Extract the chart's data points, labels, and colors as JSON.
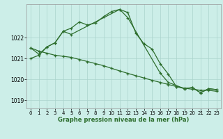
{
  "xlabel": "Graphe pression niveau de la mer (hPa)",
  "bg_color": "#cceee8",
  "grid_color": "#aad4cc",
  "line_color": "#2d6e2d",
  "ylim": [
    1018.6,
    1023.6
  ],
  "xlim": [
    -0.5,
    23.5
  ],
  "yticks": [
    1019,
    1020,
    1021,
    1022
  ],
  "xticks": [
    0,
    1,
    2,
    3,
    4,
    5,
    6,
    7,
    8,
    9,
    10,
    11,
    12,
    13,
    14,
    15,
    16,
    17,
    18,
    19,
    20,
    21,
    22,
    23
  ],
  "series1_x": [
    0,
    1,
    2,
    3,
    4,
    5,
    6,
    7,
    8,
    9,
    10,
    11,
    12,
    13,
    14,
    15,
    16,
    17,
    18,
    19,
    20,
    21,
    22,
    23
  ],
  "series1_y": [
    1021.0,
    1021.15,
    1021.55,
    1021.75,
    1022.3,
    1022.45,
    1022.75,
    1022.6,
    1022.7,
    1023.0,
    1023.25,
    1023.35,
    1023.2,
    1022.2,
    1021.7,
    1021.45,
    1020.75,
    1020.25,
    1019.65,
    1019.55,
    1019.6,
    1019.35,
    1019.55,
    1019.5
  ],
  "series2_x": [
    0,
    1,
    2,
    3,
    4,
    5,
    11,
    12,
    16,
    17,
    19,
    20,
    21,
    22,
    23
  ],
  "series2_y": [
    1021.5,
    1021.2,
    1021.55,
    1021.75,
    1022.3,
    1022.15,
    1023.35,
    1022.95,
    1020.3,
    1019.85,
    1019.55,
    1019.6,
    1019.35,
    1019.55,
    1019.5
  ],
  "series3_x": [
    0,
    1,
    2,
    3,
    4,
    5,
    6,
    7,
    8,
    9,
    10,
    11,
    12,
    13,
    14,
    15,
    16,
    17,
    18,
    19,
    20,
    21,
    22,
    23
  ],
  "series3_y": [
    1021.5,
    1021.35,
    1021.25,
    1021.15,
    1021.1,
    1021.05,
    1020.95,
    1020.85,
    1020.75,
    1020.65,
    1020.52,
    1020.4,
    1020.28,
    1020.17,
    1020.06,
    1019.95,
    1019.85,
    1019.75,
    1019.65,
    1019.57,
    1019.52,
    1019.47,
    1019.47,
    1019.42
  ]
}
